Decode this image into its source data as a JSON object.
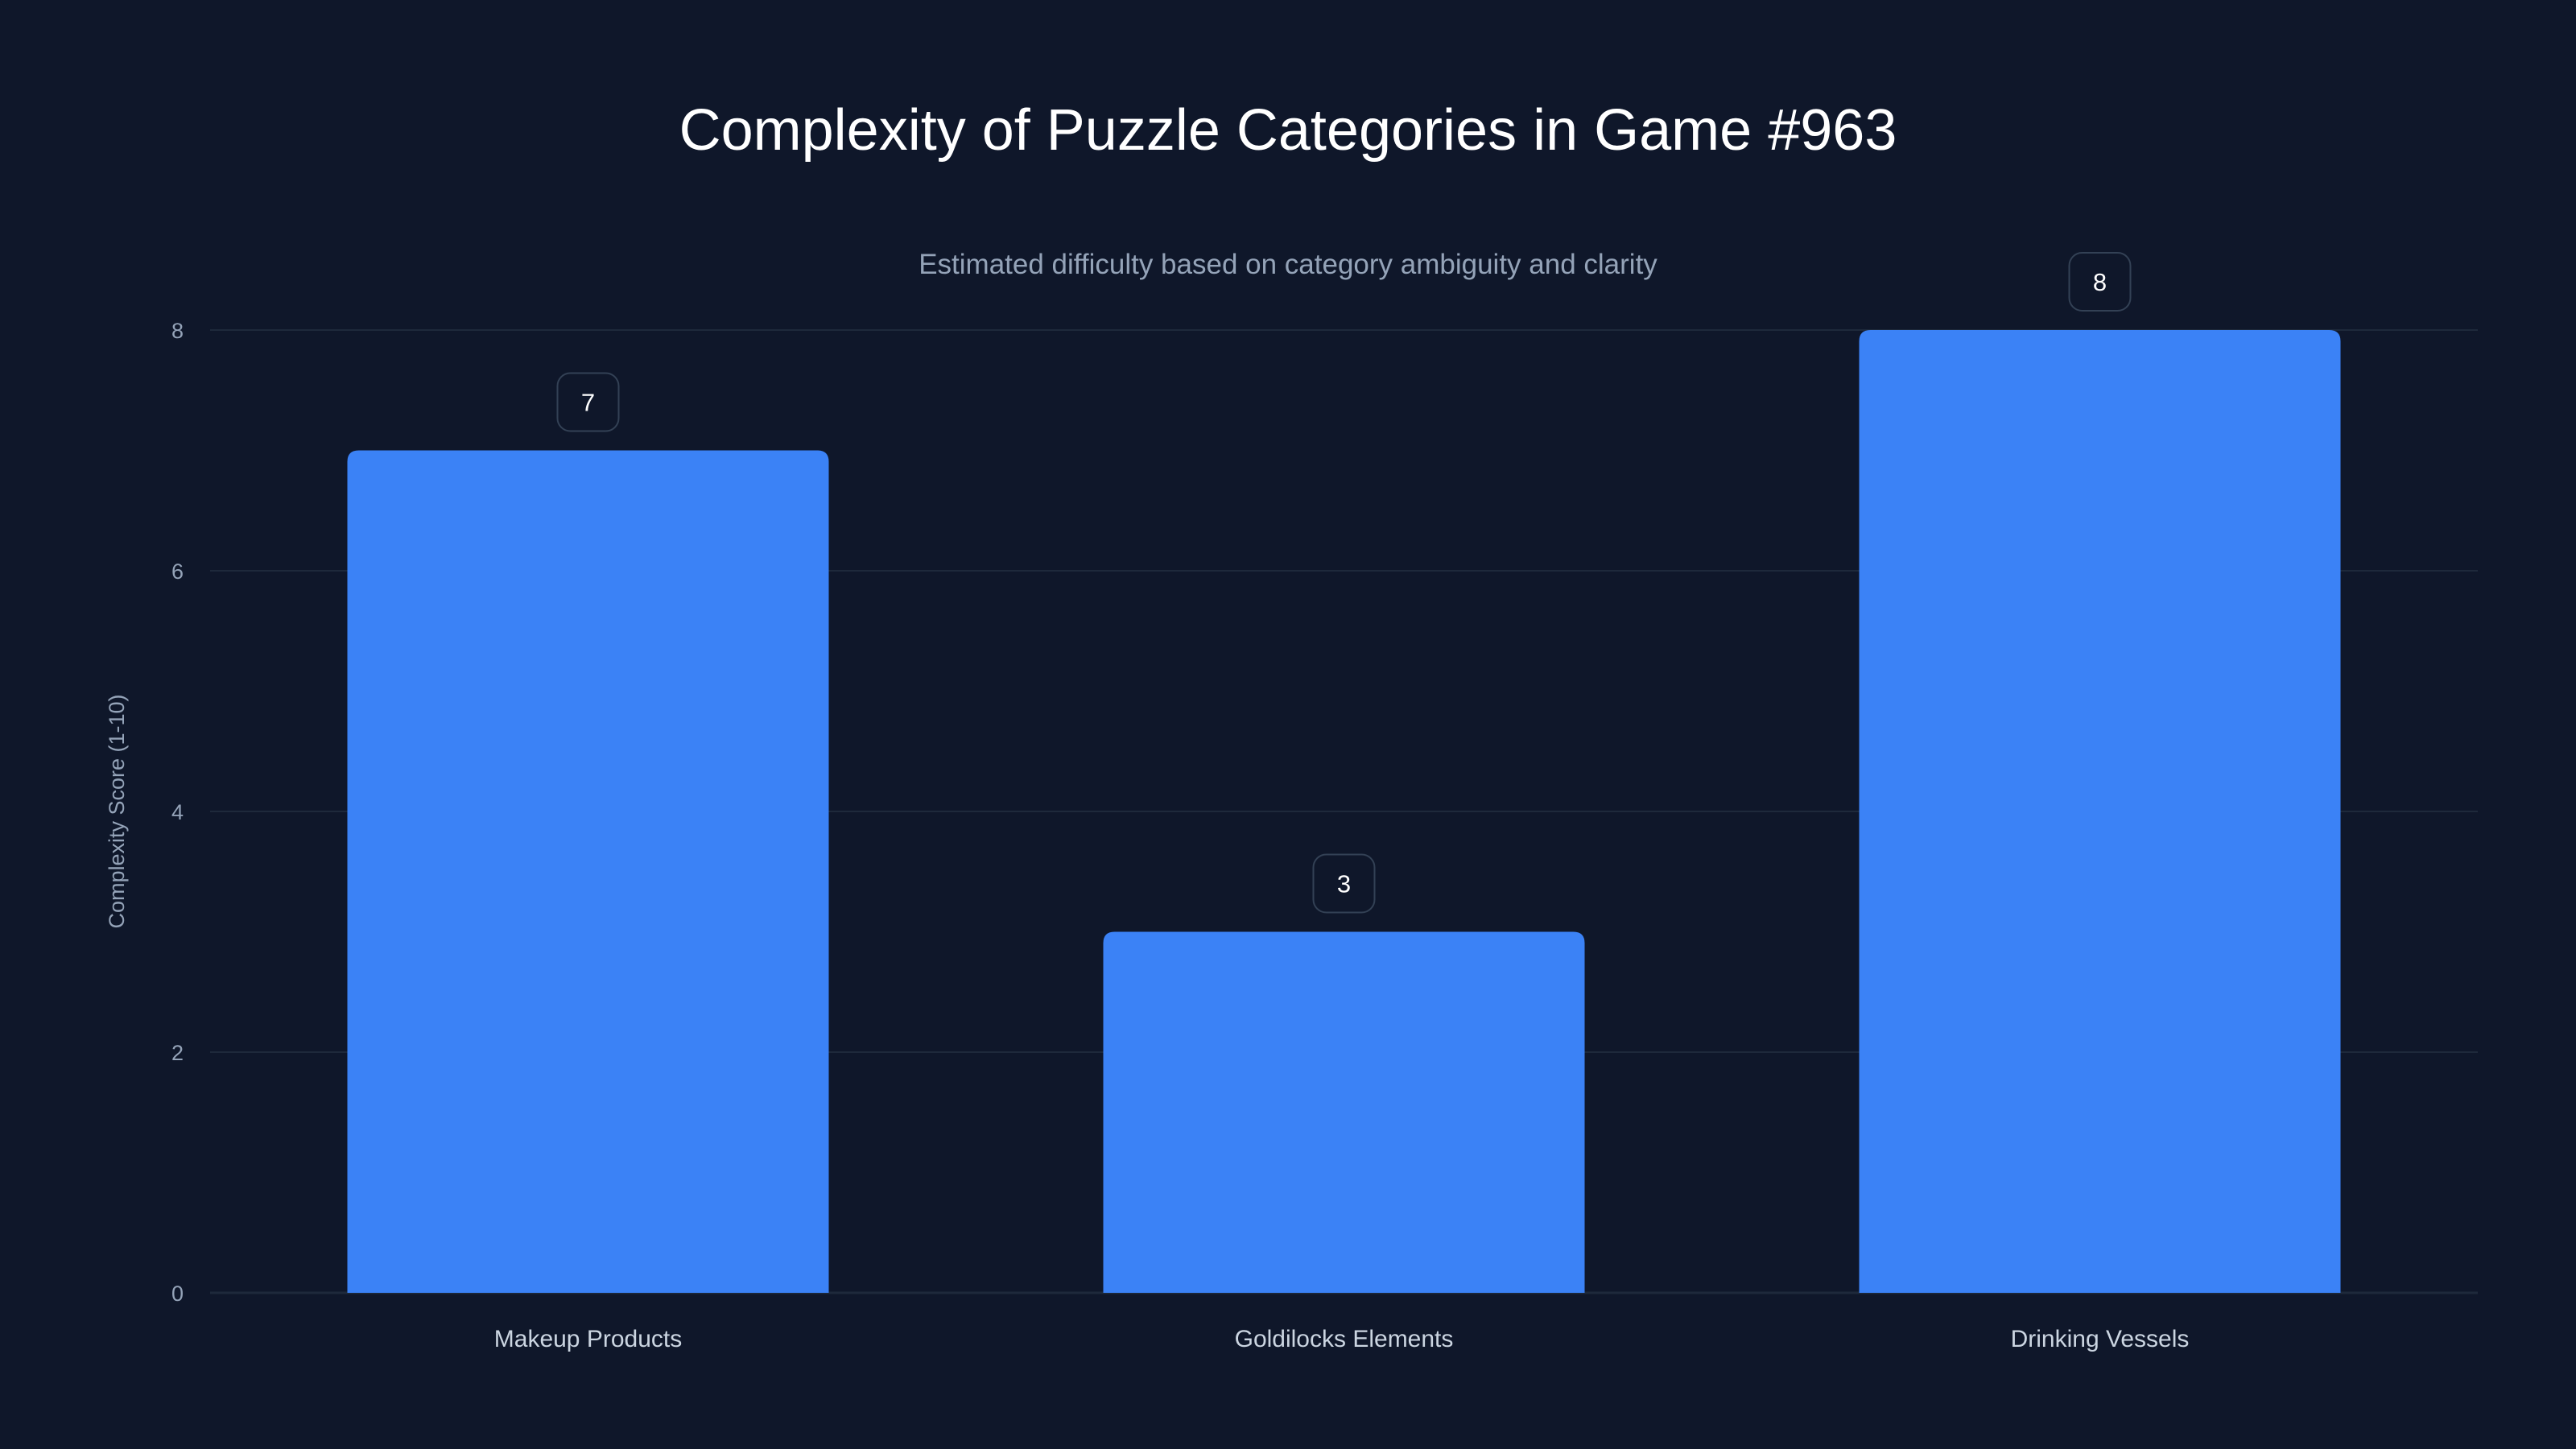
{
  "chart_data": {
    "type": "bar",
    "title": "Complexity of Puzzle Categories in Game #963",
    "subtitle": "Estimated difficulty based on category ambiguity and clarity",
    "xlabel": "",
    "ylabel": "Complexity Score (1-10)",
    "categories": [
      "Makeup Products",
      "Goldilocks Elements",
      "Drinking Vessels"
    ],
    "values": [
      7,
      3,
      8
    ],
    "data_labels": [
      "7",
      "3",
      "8"
    ],
    "ylim": [
      0,
      8
    ],
    "yticks": [
      0,
      2,
      4,
      6,
      8
    ],
    "ytick_labels": [
      "0",
      "2",
      "4",
      "6",
      "8"
    ],
    "grid": true,
    "bar_color": "#3b82f6",
    "background": "#0f172a"
  }
}
